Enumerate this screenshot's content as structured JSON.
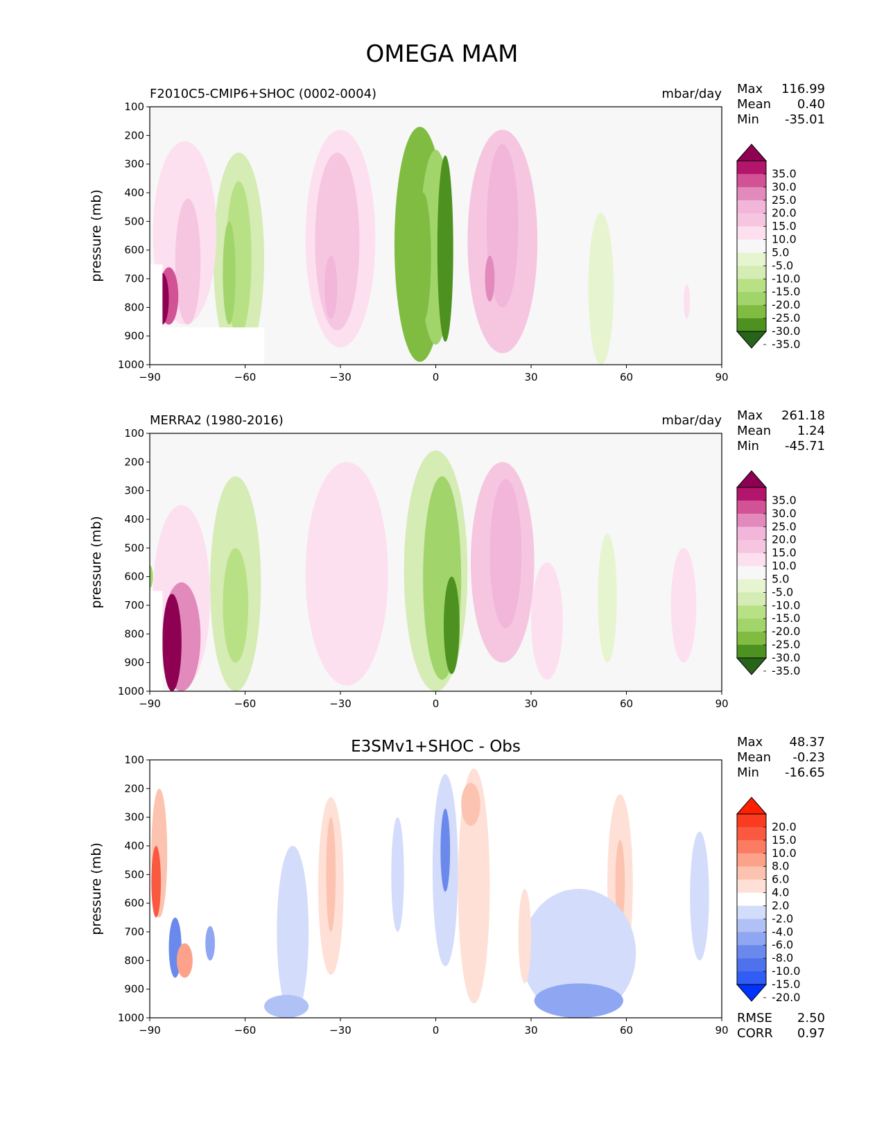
{
  "figure_title": "OMEGA MAM",
  "colors": {
    "background": "#f7f7f7",
    "pink_green_scale": [
      "#276419",
      "#4d9221",
      "#7fbc41",
      "#a1d56b",
      "#b8e186",
      "#d5ecb4",
      "#e6f5d0",
      "#f7f7f7",
      "#fde0ef",
      "#f6c6e1",
      "#f1b6da",
      "#e18abb",
      "#d25296",
      "#b3156d",
      "#8e0152"
    ],
    "diff_scale": [
      "#0033ff",
      "#2f5df5",
      "#4e72ec",
      "#6b89ec",
      "#8fa6f2",
      "#b0c1f6",
      "#d3dcfa",
      "#ffffff",
      "#fee0d6",
      "#fcc3b0",
      "#fca28b",
      "#fb7c62",
      "#f95a3f",
      "#f93b21",
      "#ff2000"
    ]
  },
  "chart_data": [
    {
      "id": "test",
      "type": "contour",
      "title": "F2010C5-CMIP6+SHOC (0002-0004)",
      "units": "mbar/day",
      "ylabel": "pressure (mb)",
      "xlim": [
        -90,
        90
      ],
      "ylim": [
        1000,
        100
      ],
      "xticks": [
        "−90",
        "−60",
        "−30",
        "0",
        "30",
        "60",
        "90"
      ],
      "yticks": [
        "100",
        "200",
        "300",
        "400",
        "500",
        "600",
        "700",
        "800",
        "900",
        "1000"
      ],
      "stats": [
        {
          "label": "Max",
          "value": "116.99"
        },
        {
          "label": "Mean",
          "value": "0.40"
        },
        {
          "label": "Min",
          "value": "-35.01"
        }
      ],
      "colorbar_labels": [
        "35.0",
        "30.0",
        "25.0",
        "20.0",
        "15.0",
        "10.0",
        "5.0",
        "-5.0",
        "-10.0",
        "-15.0",
        "-20.0",
        "-25.0",
        "-30.0",
        "-35.0"
      ],
      "features": [
        {
          "lat": -5,
          "lat_width": 8,
          "p_top": 170,
          "p_bot": 990,
          "level": -5
        },
        {
          "lat": 0,
          "lat_width": 5,
          "p_top": 250,
          "p_bot": 930,
          "level": -4
        },
        {
          "lat": 3,
          "lat_width": 2.5,
          "p_top": 270,
          "p_bot": 920,
          "level": -6
        },
        {
          "lat": -4,
          "lat_width": 2.5,
          "p_top": 400,
          "p_bot": 850,
          "level": -5
        },
        {
          "lat": 21,
          "lat_width": 11,
          "p_top": 180,
          "p_bot": 960,
          "level": 2
        },
        {
          "lat": 21,
          "lat_width": 5,
          "p_top": 230,
          "p_bot": 800,
          "level": 3
        },
        {
          "lat": 17,
          "lat_width": 1.5,
          "p_top": 620,
          "p_bot": 780,
          "level": 4
        },
        {
          "lat": -30,
          "lat_width": 11,
          "p_top": 180,
          "p_bot": 940,
          "level": 1
        },
        {
          "lat": -31,
          "lat_width": 7,
          "p_top": 260,
          "p_bot": 880,
          "level": 2
        },
        {
          "lat": -33,
          "lat_width": 2,
          "p_top": 620,
          "p_bot": 840,
          "level": 3
        },
        {
          "lat": -62,
          "lat_width": 8,
          "p_top": 260,
          "p_bot": 1000,
          "level": -2
        },
        {
          "lat": -62,
          "lat_width": 4,
          "p_top": 360,
          "p_bot": 900,
          "level": -3
        },
        {
          "lat": -65,
          "lat_width": 2,
          "p_top": 500,
          "p_bot": 860,
          "level": -4
        },
        {
          "lat": -79,
          "lat_width": 10,
          "p_top": 220,
          "p_bot": 860,
          "level": 1
        },
        {
          "lat": -78,
          "lat_width": 4,
          "p_top": 420,
          "p_bot": 860,
          "level": 2
        },
        {
          "lat": -84,
          "lat_width": 3,
          "p_top": 660,
          "p_bot": 860,
          "level": 5
        },
        {
          "lat": -86,
          "lat_width": 2,
          "p_top": 680,
          "p_bot": 860,
          "level": 7
        },
        {
          "lat": 52,
          "lat_width": 4,
          "p_top": 470,
          "p_bot": 1000,
          "level": -1
        },
        {
          "lat": 79,
          "lat_width": 1,
          "p_top": 720,
          "p_bot": 840,
          "level": 1
        }
      ],
      "masks": [
        {
          "lat_min": -90,
          "lat_max": -54,
          "p_top": 870,
          "p_bot": 1000
        },
        {
          "lat_min": -90,
          "lat_max": -86,
          "p_top": 650,
          "p_bot": 870
        }
      ]
    },
    {
      "id": "reference",
      "type": "contour",
      "title": "MERRA2 (1980-2016)",
      "units": "mbar/day",
      "ylabel": "pressure (mb)",
      "xlim": [
        -90,
        90
      ],
      "ylim": [
        1000,
        100
      ],
      "xticks": [
        "−90",
        "−60",
        "−30",
        "0",
        "30",
        "60",
        "90"
      ],
      "yticks": [
        "100",
        "200",
        "300",
        "400",
        "500",
        "600",
        "700",
        "800",
        "900",
        "1000"
      ],
      "stats": [
        {
          "label": "Max",
          "value": "261.18"
        },
        {
          "label": "Mean",
          "value": "1.24"
        },
        {
          "label": "Min",
          "value": "-45.71"
        }
      ],
      "colorbar_labels": [
        "35.0",
        "30.0",
        "25.0",
        "20.0",
        "15.0",
        "10.0",
        "5.0",
        "-5.0",
        "-10.0",
        "-15.0",
        "-20.0",
        "-25.0",
        "-30.0",
        "-35.0"
      ],
      "features": [
        {
          "lat": 0,
          "lat_width": 10,
          "p_top": 160,
          "p_bot": 1000,
          "level": -2
        },
        {
          "lat": 2,
          "lat_width": 6,
          "p_top": 250,
          "p_bot": 960,
          "level": -4
        },
        {
          "lat": 5,
          "lat_width": 2.5,
          "p_top": 600,
          "p_bot": 940,
          "level": -6
        },
        {
          "lat": 21,
          "lat_width": 10,
          "p_top": 200,
          "p_bot": 900,
          "level": 2
        },
        {
          "lat": 22,
          "lat_width": 5,
          "p_top": 260,
          "p_bot": 780,
          "level": 3
        },
        {
          "lat": -28,
          "lat_width": 13,
          "p_top": 200,
          "p_bot": 980,
          "level": 1
        },
        {
          "lat": -63,
          "lat_width": 8,
          "p_top": 250,
          "p_bot": 1000,
          "level": -2
        },
        {
          "lat": -63,
          "lat_width": 4,
          "p_top": 500,
          "p_bot": 900,
          "level": -3
        },
        {
          "lat": -80,
          "lat_width": 9,
          "p_top": 350,
          "p_bot": 990,
          "level": 1
        },
        {
          "lat": -80,
          "lat_width": 6,
          "p_top": 620,
          "p_bot": 1000,
          "level": 4
        },
        {
          "lat": -83,
          "lat_width": 3,
          "p_top": 660,
          "p_bot": 1000,
          "level": 7
        },
        {
          "lat": 35,
          "lat_width": 5,
          "p_top": 550,
          "p_bot": 960,
          "level": 1
        },
        {
          "lat": 54,
          "lat_width": 3,
          "p_top": 450,
          "p_bot": 900,
          "level": -1
        },
        {
          "lat": 78,
          "lat_width": 4,
          "p_top": 500,
          "p_bot": 900,
          "level": 1
        },
        {
          "lat": -90,
          "lat_width": 1,
          "p_top": 560,
          "p_bot": 640,
          "level": -4
        }
      ],
      "masks": [
        {
          "lat_min": -90,
          "lat_max": -86,
          "p_top": 650,
          "p_bot": 1000
        }
      ]
    },
    {
      "id": "difference",
      "type": "contour",
      "title": "E3SMv1+SHOC - Obs",
      "units": "",
      "ylabel": "pressure (mb)",
      "xlim": [
        -90,
        90
      ],
      "ylim": [
        1000,
        100
      ],
      "xticks": [
        "−90",
        "−60",
        "−30",
        "0",
        "30",
        "60",
        "90"
      ],
      "yticks": [
        "100",
        "200",
        "300",
        "400",
        "500",
        "600",
        "700",
        "800",
        "900",
        "1000"
      ],
      "stats": [
        {
          "label": "Max",
          "value": "48.37"
        },
        {
          "label": "Mean",
          "value": "-0.23"
        },
        {
          "label": "Min",
          "value": "-16.65"
        }
      ],
      "extra_stats": [
        {
          "label": "RMSE",
          "value": "2.50"
        },
        {
          "label": "CORR",
          "value": "0.97"
        }
      ],
      "colorbar_labels": [
        "20.0",
        "15.0",
        "10.0",
        "8.0",
        "6.0",
        "4.0",
        "2.0",
        "-2.0",
        "-4.0",
        "-6.0",
        "-8.0",
        "-10.0",
        "-15.0",
        "-20.0"
      ],
      "features": [
        {
          "lat": 3,
          "lat_width": 4,
          "p_top": 150,
          "p_bot": 820,
          "level": -1
        },
        {
          "lat": 3,
          "lat_width": 1.5,
          "p_top": 270,
          "p_bot": 560,
          "level": -4
        },
        {
          "lat": 12,
          "lat_width": 5,
          "p_top": 130,
          "p_bot": 950,
          "level": 1
        },
        {
          "lat": 11,
          "lat_width": 3,
          "p_top": 180,
          "p_bot": 330,
          "level": 2
        },
        {
          "lat": -33,
          "lat_width": 4,
          "p_top": 230,
          "p_bot": 850,
          "level": 1
        },
        {
          "lat": -33,
          "lat_width": 1.5,
          "p_top": 300,
          "p_bot": 700,
          "level": 2
        },
        {
          "lat": 58,
          "lat_width": 4,
          "p_top": 220,
          "p_bot": 850,
          "level": 1
        },
        {
          "lat": 58,
          "lat_width": 1.5,
          "p_top": 380,
          "p_bot": 680,
          "level": 2
        },
        {
          "lat": -45,
          "lat_width": 5,
          "p_top": 400,
          "p_bot": 1000,
          "level": -1
        },
        {
          "lat": -47,
          "lat_width": 7,
          "p_top": 920,
          "p_bot": 1000,
          "level": -2
        },
        {
          "lat": 45,
          "lat_width": 18,
          "p_top": 550,
          "p_bot": 1000,
          "level": -1
        },
        {
          "lat": 45,
          "lat_width": 14,
          "p_top": 880,
          "p_bot": 1000,
          "level": -3
        },
        {
          "lat": 83,
          "lat_width": 3,
          "p_top": 350,
          "p_bot": 800,
          "level": -1
        },
        {
          "lat": -87,
          "lat_width": 2.5,
          "p_top": 200,
          "p_bot": 650,
          "level": 2
        },
        {
          "lat": -88,
          "lat_width": 1.5,
          "p_top": 400,
          "p_bot": 650,
          "level": 5
        },
        {
          "lat": -82,
          "lat_width": 2,
          "p_top": 650,
          "p_bot": 860,
          "level": -4
        },
        {
          "lat": -79,
          "lat_width": 2.5,
          "p_top": 740,
          "p_bot": 860,
          "level": 3
        },
        {
          "lat": -71,
          "lat_width": 1.5,
          "p_top": 680,
          "p_bot": 800,
          "level": -3
        },
        {
          "lat": 28,
          "lat_width": 2,
          "p_top": 550,
          "p_bot": 880,
          "level": 1
        },
        {
          "lat": -12,
          "lat_width": 2,
          "p_top": 300,
          "p_bot": 700,
          "level": -1
        }
      ],
      "masks": [
        {
          "lat_min": -90,
          "lat_max": -54,
          "p_top": 870,
          "p_bot": 1000
        },
        {
          "lat_min": -90,
          "lat_max": -86,
          "p_top": 650,
          "p_bot": 870
        }
      ]
    }
  ]
}
